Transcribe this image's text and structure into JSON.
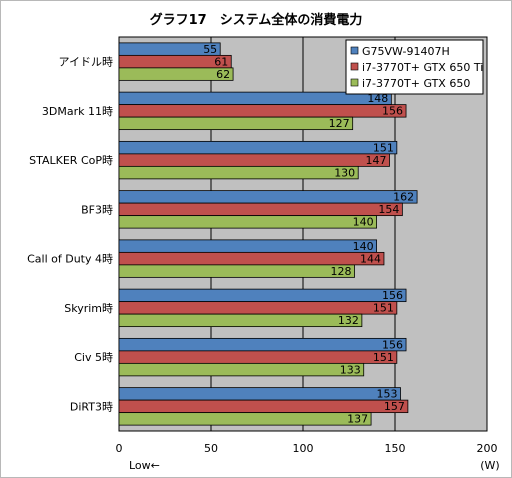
{
  "chart_data": {
    "type": "bar",
    "orientation": "horizontal",
    "title": "グラフ17　システム全体の消費電力",
    "categories": [
      "アイドル時",
      "3DMark 11時",
      "STALKER CoP時",
      "BF3時",
      "Call of Duty 4時",
      "Skyrim時",
      "Civ 5時",
      "DiRT3時"
    ],
    "series": [
      {
        "name": "G75VW-91407H",
        "color": "#4f81bd",
        "values": [
          55,
          148,
          151,
          162,
          140,
          156,
          156,
          153
        ]
      },
      {
        "name": "i7-3770T+ GTX 650 Ti",
        "color": "#c0504d",
        "values": [
          61,
          156,
          147,
          154,
          144,
          151,
          151,
          157
        ]
      },
      {
        "name": "i7-3770T+ GTX 650",
        "color": "#9bbb59",
        "values": [
          62,
          127,
          130,
          140,
          128,
          132,
          133,
          137
        ]
      }
    ],
    "xlim": [
      0,
      200
    ],
    "xticks": [
      0,
      50,
      100,
      150,
      200
    ],
    "unit_label": "(W)",
    "direction_label": "Low←",
    "legend_position": "top-right",
    "grid": true,
    "plot_background": "#c0c0c0"
  }
}
